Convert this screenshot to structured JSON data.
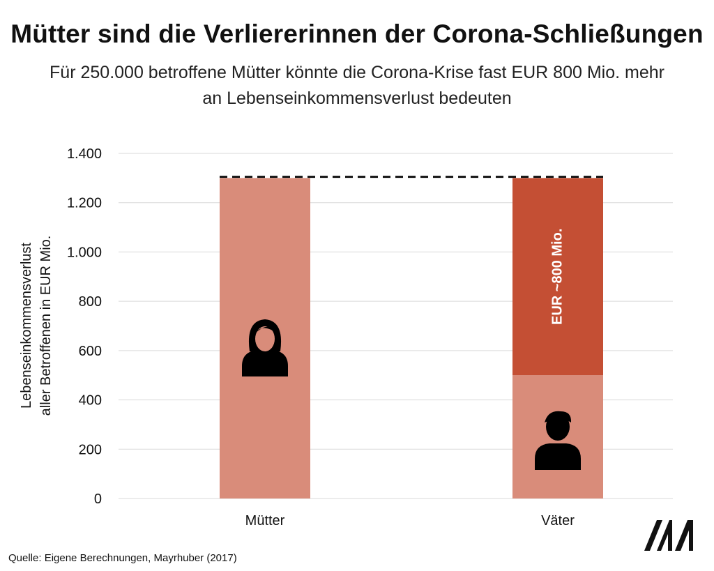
{
  "title": "Mütter sind die Verliererinnen der Corona-Schließungen",
  "subtitle": "Für 250.000 betroffene Mütter könnte die Corona-Krise fast EUR 800 Mio. mehr an Lebenseinkommensverlust bedeuten",
  "source": "Quelle: Eigene Berechnungen, Mayrhuber (2017)",
  "logo_text": "MM",
  "colors": {
    "light": "#d98c7a",
    "dark": "#c44f34",
    "grid": "#d9d9d9",
    "reference": "#111111"
  },
  "chart_data": {
    "type": "bar",
    "stacked": true,
    "categories": [
      "Mütter",
      "Väter"
    ],
    "series": [
      {
        "values": [
          1300,
          500
        ],
        "color": "#d98c7a"
      },
      {
        "values": [
          0,
          800
        ],
        "color": "#c44f34",
        "labels": [
          "",
          "EUR ~800 Mio."
        ]
      }
    ],
    "reference_line": {
      "value": 1305,
      "style": "dashed"
    },
    "ylabel": [
      "Lebenseinkommensverlust",
      "aller Betroffenen in EUR Mio."
    ],
    "ylim": [
      0,
      1400
    ],
    "yticks": [
      0,
      200,
      400,
      600,
      800,
      1000,
      1200,
      1400
    ],
    "ytick_labels": [
      "0",
      "200",
      "400",
      "600",
      "800",
      "1.000",
      "1.200",
      "1.400"
    ],
    "grid": true,
    "icons": [
      "woman-icon",
      "man-icon"
    ]
  }
}
